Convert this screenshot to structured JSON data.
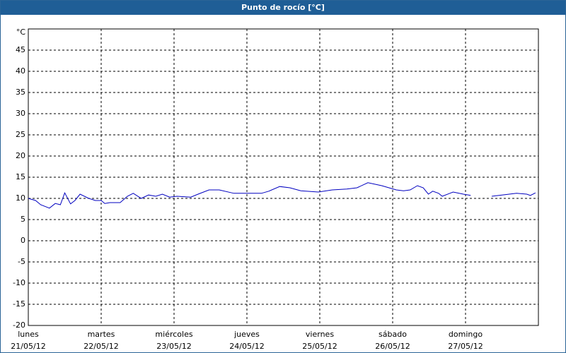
{
  "chart_data": {
    "type": "line",
    "title": "Punto de rocío [°C]",
    "y_unit": "°C",
    "xlim": [
      0,
      7
    ],
    "ylim": [
      -20,
      50
    ],
    "xticks": [
      {
        "value": 0,
        "label": "lunes"
      },
      {
        "value": 1,
        "label": "martes"
      },
      {
        "value": 2,
        "label": "miércoles"
      },
      {
        "value": 3,
        "label": "jueves"
      },
      {
        "value": 4,
        "label": "viernes"
      },
      {
        "value": 5,
        "label": "sábado"
      },
      {
        "value": 6,
        "label": "domingo"
      }
    ],
    "xtick_dates": [
      "21/05/12",
      "22/05/12",
      "23/05/12",
      "24/05/12",
      "25/05/12",
      "26/05/12",
      "27/05/12"
    ],
    "yticks": [
      -20,
      -15,
      -10,
      -5,
      0,
      5,
      10,
      15,
      20,
      25,
      30,
      35,
      40,
      45
    ],
    "grid": true,
    "series": [
      {
        "name": "Punto de rocío",
        "color": "#0000c0",
        "x": [
          0,
          0.1,
          0.17,
          0.29,
          0.37,
          0.44,
          0.5,
          0.58,
          0.64,
          0.71,
          0.83,
          0.92,
          1.0,
          1.05,
          1.12,
          1.26,
          1.36,
          1.44,
          1.55,
          1.65,
          1.75,
          1.84,
          1.94,
          2.04,
          2.23,
          2.33,
          2.48,
          2.62,
          2.82,
          3.01,
          3.2,
          3.3,
          3.45,
          3.59,
          3.74,
          3.98,
          4.17,
          4.37,
          4.51,
          4.66,
          4.85,
          5.05,
          5.15,
          5.24,
          5.34,
          5.42,
          5.49,
          5.55,
          5.63,
          5.68,
          5.83,
          5.97,
          6.07,
          6.2,
          6.36,
          6.5,
          6.7,
          6.84,
          6.89,
          6.96
        ],
        "values": [
          10,
          9.5,
          8.5,
          7.7,
          8.8,
          8.5,
          11.3,
          8.7,
          9.5,
          11,
          10,
          9.5,
          9.5,
          8.8,
          9,
          9,
          10.5,
          11.2,
          10,
          10.8,
          10.5,
          11,
          10.3,
          10.5,
          10.3,
          11,
          12,
          12,
          11.2,
          11.2,
          11.2,
          11.7,
          12.8,
          12.5,
          11.8,
          11.5,
          12,
          12.2,
          12.5,
          13.7,
          13,
          12,
          11.8,
          12,
          13,
          12.5,
          11,
          11.7,
          11.2,
          10.5,
          11.5,
          11,
          10.7,
          null,
          10.5,
          10.8,
          11.2,
          11,
          10.7,
          11.3
        ]
      }
    ]
  }
}
